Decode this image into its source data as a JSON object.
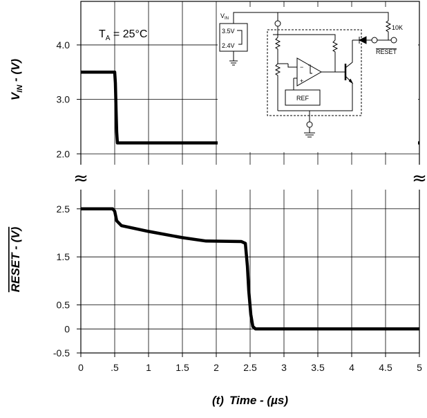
{
  "chart_data": {
    "type": "line",
    "x": {
      "label_prefix": "(t)",
      "label": "Time - (µs)",
      "lim": [
        0,
        5
      ],
      "ticks": [
        0,
        0.5,
        1,
        1.5,
        2,
        2.5,
        3,
        3.5,
        4,
        4.5,
        5
      ],
      "tick_labels": [
        "0",
        ".5",
        "1",
        "1.5",
        "2",
        "2.5",
        "3",
        "3.5",
        "4",
        "4.5",
        "5"
      ]
    },
    "panels": [
      {
        "ylabel_main": "V",
        "ylabel_sub": "IN",
        "ylabel_tail": " - (V)",
        "ylim": [
          1.8,
          4.8
        ],
        "yticks": [
          2.0,
          3.0,
          4.0
        ],
        "ytick_labels": [
          "2.0",
          "3.0",
          "4.0"
        ],
        "series": [
          {
            "x": [
              0,
              0.5,
              0.51,
              0.52,
              0.53,
              0.54,
              5.0
            ],
            "y": [
              3.5,
              3.5,
              3.3,
              2.8,
              2.4,
              2.2,
              2.2
            ]
          }
        ]
      },
      {
        "ylabel": "RESET - (V)",
        "ylabel_overline": "RESET",
        "ylim": [
          -0.5,
          2.9
        ],
        "yticks": [
          -0.5,
          0,
          0.5,
          1.5,
          2.5
        ],
        "ytick_labels": [
          "-0.5",
          "0",
          "0.5",
          "1.5",
          "2.5"
        ],
        "series": [
          {
            "x": [
              0,
              0.47,
              0.5,
              0.53,
              0.6,
              1.0,
              1.5,
              1.85,
              2.37,
              2.43,
              2.46,
              2.48,
              2.51,
              2.54,
              2.58,
              5.0
            ],
            "y": [
              2.5,
              2.5,
              2.45,
              2.25,
              2.15,
              2.03,
              1.9,
              1.83,
              1.82,
              1.78,
              1.3,
              0.8,
              0.3,
              0.05,
              0.0,
              0.0
            ]
          }
        ]
      }
    ],
    "annotation": {
      "text_main": "T",
      "text_sub": "A",
      "text_tail": " = 25°C"
    },
    "schematic": {
      "vin_main": "V",
      "vin_sub": "IN",
      "v_high": "3.5V",
      "v_low": "2.4V",
      "resistor": "10K",
      "output": "RESET",
      "ref": "REF"
    },
    "grid": true,
    "axis_break": "≈"
  }
}
